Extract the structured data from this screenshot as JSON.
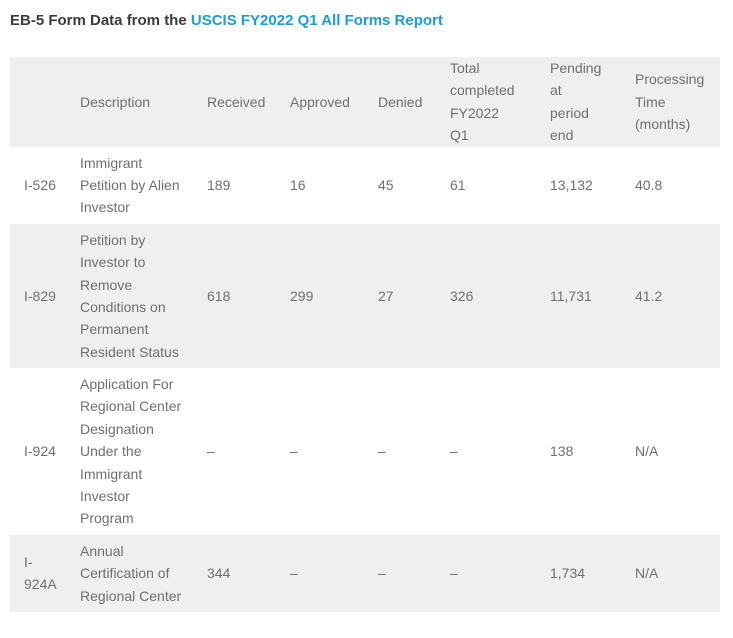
{
  "page": {
    "title_prefix": "EB-5 Form Data from the ",
    "title_link": "USCIS FY2022 Q1 All Forms Report"
  },
  "colors": {
    "link_blue": "#1f9bd7",
    "row_gray": "#efefef",
    "text_gray": "#6f6f6f",
    "title_dark": "#3b3b3b"
  },
  "table": {
    "columns": [
      "",
      "Description",
      "Received",
      "Approved",
      "Denied",
      "Total completed FY2022 Q1",
      "Pending at period end",
      "Processing Time (months)"
    ],
    "rows": [
      {
        "form": "I-526",
        "description": "Immigrant Petition by Alien Investor",
        "received": "189",
        "approved": "16",
        "denied": "45",
        "total_completed": "61",
        "pending": "13,132",
        "processing_time": "40.8"
      },
      {
        "form": "I-829",
        "description": "Petition by Investor to Remove Conditions on Permanent Resident Status",
        "received": "618",
        "approved": "299",
        "denied": "27",
        "total_completed": "326",
        "pending": "11,731",
        "processing_time": "41.2"
      },
      {
        "form": "I-924",
        "description": "Application For Regional Center Designation Under the Immigrant Investor Program",
        "received": "–",
        "approved": "–",
        "denied": "–",
        "total_completed": "–",
        "pending": "138",
        "processing_time": "N/A"
      },
      {
        "form": "I-924A",
        "description": "Annual Certification of Regional Center",
        "received": "344",
        "approved": "–",
        "denied": "–",
        "total_completed": "–",
        "pending": "1,734",
        "processing_time": "N/A"
      }
    ]
  }
}
